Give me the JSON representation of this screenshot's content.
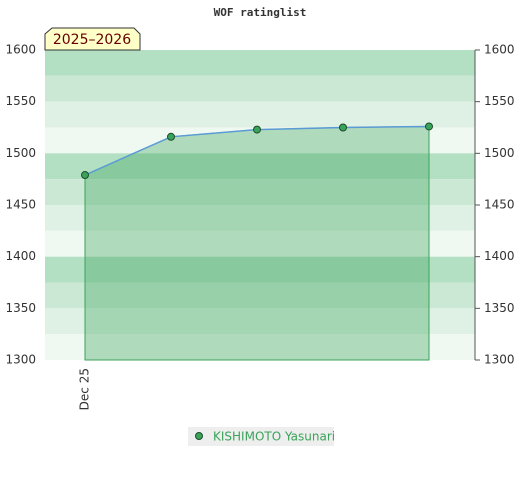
{
  "chart_data": {
    "type": "line",
    "title": "WOF ratinglist",
    "badge": "2025–2026",
    "categories": [
      "Dec 25",
      null,
      null,
      null,
      null
    ],
    "series": [
      {
        "name": "KISHIMOTO Yasunari",
        "color": "#3aa35a",
        "line_color": "#5b9bd5",
        "values": [
          1479,
          1516,
          1523,
          1525,
          1526
        ]
      }
    ],
    "ylim": [
      1300,
      1600
    ],
    "yticks": [
      1300,
      1350,
      1400,
      1450,
      1500,
      1550,
      1600
    ],
    "grid": true
  }
}
